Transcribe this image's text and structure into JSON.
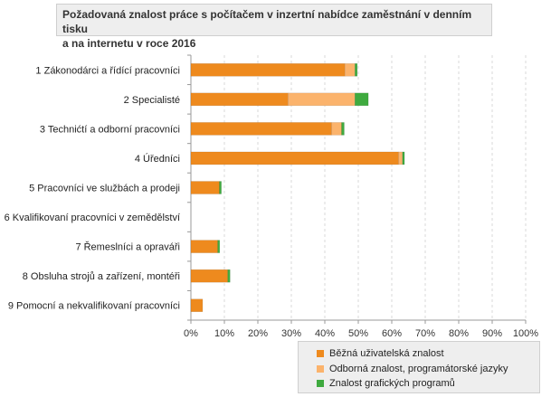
{
  "title_lines": [
    "Požadovaná  znalost práce s počítačem v inzertní nabídce zaměstnání  v denním tisku",
    "a na internetu v roce 2016"
  ],
  "colors": {
    "bezna": "#ee8a1e",
    "odborna": "#fbb36c",
    "graficke": "#3faa3f",
    "grid": "#d8d8d8",
    "axis": "#999999"
  },
  "chart_data": {
    "type": "bar",
    "orientation": "horizontal",
    "stacked": true,
    "title": "Požadovaná  znalost práce s počítačem v inzertní nabídce zaměstnání  v denním tisku a na internetu v roce 2016",
    "categories": [
      "1 Zákonodárci a řídící pracovníci",
      "2 Specialisté",
      "3 Technićtí a odborní pracovníci",
      "4 Úředníci",
      "5 Pracovníci ve službách a prodeji",
      "6 Kvalifikovaní pracovníci v zemědělství",
      "7 Řemeslníci a opraváři",
      "8 Obsluha strojů a zařízení, montéři",
      "9 Pomocní a nekvalifikovaní pracovníci"
    ],
    "series": [
      {
        "name": "Běžná uživatelská znalost",
        "values": [
          46,
          29,
          42,
          62,
          8.5,
          0,
          8,
          11,
          3.5
        ]
      },
      {
        "name": "Odborná znalost, programátorské jazyky",
        "values": [
          3,
          20,
          3,
          1.2,
          0,
          0,
          0,
          0,
          0
        ]
      },
      {
        "name": "Znalost grafických programů",
        "values": [
          0.7,
          4,
          0.8,
          0.6,
          0.6,
          0,
          0.6,
          0.7,
          0
        ]
      }
    ],
    "xlim": [
      0,
      100
    ],
    "ticks": [
      "0%",
      "10%",
      "20%",
      "30%",
      "40%",
      "50%",
      "60%",
      "70%",
      "80%",
      "90%",
      "100%"
    ],
    "grid": true,
    "legend": "bottom-right"
  }
}
